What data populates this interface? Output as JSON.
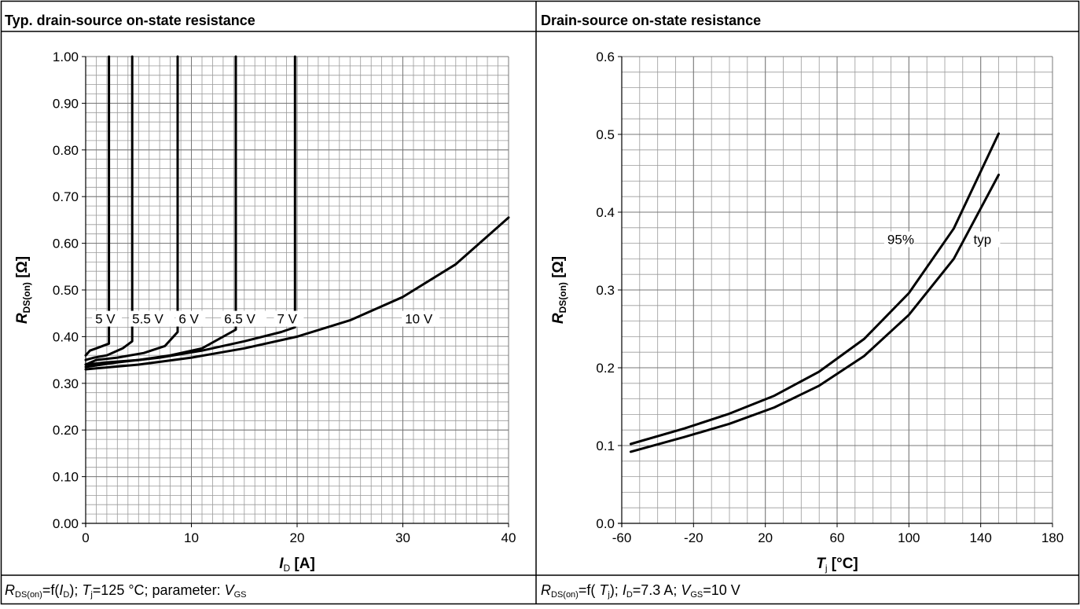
{
  "panels": [
    {
      "title": "Typ. drain-source on-state resistance",
      "caption": {
        "r_sym": "R",
        "r_sub": "DS(on)",
        "p1": "=f(",
        "id_sym": "I",
        "id_sub": "D",
        "p2": "); ",
        "tj_sym": "T",
        "tj_sub": "j",
        "p3": "=125 °C; parameter: ",
        "vgs_sym": "V",
        "vgs_sub": "GS",
        "p4": ""
      }
    },
    {
      "title": "Drain-source on-state resistance",
      "caption": {
        "r_sym": "R",
        "r_sub": "DS(on)",
        "p1": "=f( ",
        "tj_sym": "T",
        "tj_sub": "j",
        "p2": "); ",
        "id_sym": "I",
        "id_sub": "D",
        "p3": "=7.3 A; ",
        "vgs_sym": "V",
        "vgs_sub": "GS",
        "p4": "=10 V"
      }
    }
  ],
  "chart_data": [
    {
      "type": "line",
      "xlabel": {
        "sym": "I",
        "sub": "D",
        "unit": " [A]"
      },
      "ylabel": {
        "sym": "R",
        "sub": "DS(on)",
        "unit": " [Ω]"
      },
      "xlim": [
        0,
        40
      ],
      "ylim": [
        0,
        1.0
      ],
      "x_major_ticks": [
        0,
        10,
        20,
        30,
        40
      ],
      "x_tick_labels": [
        "0",
        "10",
        "20",
        "30",
        "40"
      ],
      "y_major_ticks": [
        0,
        0.1,
        0.2,
        0.3,
        0.4,
        0.5,
        0.6,
        0.7,
        0.8,
        0.9,
        1.0
      ],
      "y_tick_labels": [
        "0.00",
        "0.10",
        "0.20",
        "0.30",
        "0.40",
        "0.50",
        "0.60",
        "0.70",
        "0.80",
        "0.90",
        "1.00"
      ],
      "x_minor_step": 1,
      "y_minor_step": 0.02,
      "grid": true,
      "series": [
        {
          "name": "5 V",
          "x": [
            0,
            0.4,
            1,
            1.6,
            2.2,
            2.2
          ],
          "y": [
            0.36,
            0.37,
            0.375,
            0.38,
            0.385,
            1.0
          ],
          "label_at": [
            0.9,
            0.43
          ]
        },
        {
          "name": "5.5 V",
          "x": [
            0,
            0.8,
            2,
            3.5,
            4.4,
            4.4
          ],
          "y": [
            0.35,
            0.355,
            0.36,
            0.375,
            0.39,
            1.0
          ],
          "label_at": [
            4.4,
            0.43
          ]
        },
        {
          "name": "6 V",
          "x": [
            0,
            1,
            3,
            5.5,
            7.5,
            8.7,
            8.7
          ],
          "y": [
            0.34,
            0.35,
            0.355,
            0.365,
            0.38,
            0.41,
            1.0
          ],
          "label_at": [
            8.8,
            0.43
          ]
        },
        {
          "name": "6.5 V",
          "x": [
            0,
            2,
            5,
            8,
            11,
            14.2,
            14.2
          ],
          "y": [
            0.34,
            0.345,
            0.35,
            0.36,
            0.375,
            0.415,
            1.0
          ],
          "label_at": [
            13.1,
            0.43
          ]
        },
        {
          "name": "7 V",
          "x": [
            0,
            3,
            7,
            11,
            15,
            18.5,
            19.8,
            19.8
          ],
          "y": [
            0.335,
            0.345,
            0.355,
            0.37,
            0.39,
            0.41,
            0.42,
            1.0
          ],
          "label_at": [
            18.1,
            0.43
          ]
        },
        {
          "name": "10 V",
          "x": [
            0,
            5,
            10,
            15,
            20,
            25,
            30,
            35,
            40
          ],
          "y": [
            0.33,
            0.34,
            0.355,
            0.375,
            0.4,
            0.435,
            0.485,
            0.555,
            0.655
          ],
          "label_at": [
            30.2,
            0.43
          ]
        }
      ]
    },
    {
      "type": "line",
      "xlabel": {
        "sym": "T",
        "sub": "j",
        "unit": " [°C]"
      },
      "ylabel": {
        "sym": "R",
        "sub": "DS(on)",
        "unit": " [Ω]"
      },
      "xlim": [
        -60,
        180
      ],
      "ylim": [
        0,
        0.6
      ],
      "x_major_ticks": [
        -60,
        -20,
        20,
        60,
        100,
        140,
        180
      ],
      "x_tick_labels": [
        "-60",
        "-20",
        "20",
        "60",
        "100",
        "140",
        "180"
      ],
      "y_major_ticks": [
        0,
        0.1,
        0.2,
        0.3,
        0.4,
        0.5,
        0.6
      ],
      "y_tick_labels": [
        "0.0",
        "0.1",
        "0.2",
        "0.3",
        "0.4",
        "0.5",
        "0.6"
      ],
      "x_minor_step": 10,
      "y_minor_step": 0.02,
      "grid": true,
      "series": [
        {
          "name": "95%",
          "x": [
            -55,
            -25,
            0,
            25,
            50,
            75,
            100,
            125,
            150
          ],
          "y": [
            0.102,
            0.122,
            0.141,
            0.164,
            0.195,
            0.237,
            0.296,
            0.379,
            0.501
          ],
          "label_at": [
            88,
            0.36
          ]
        },
        {
          "name": "typ",
          "x": [
            -55,
            -25,
            0,
            25,
            50,
            75,
            100,
            125,
            150
          ],
          "y": [
            0.092,
            0.111,
            0.128,
            0.149,
            0.177,
            0.215,
            0.268,
            0.34,
            0.448
          ],
          "label_at": [
            136,
            0.36
          ]
        }
      ]
    }
  ]
}
